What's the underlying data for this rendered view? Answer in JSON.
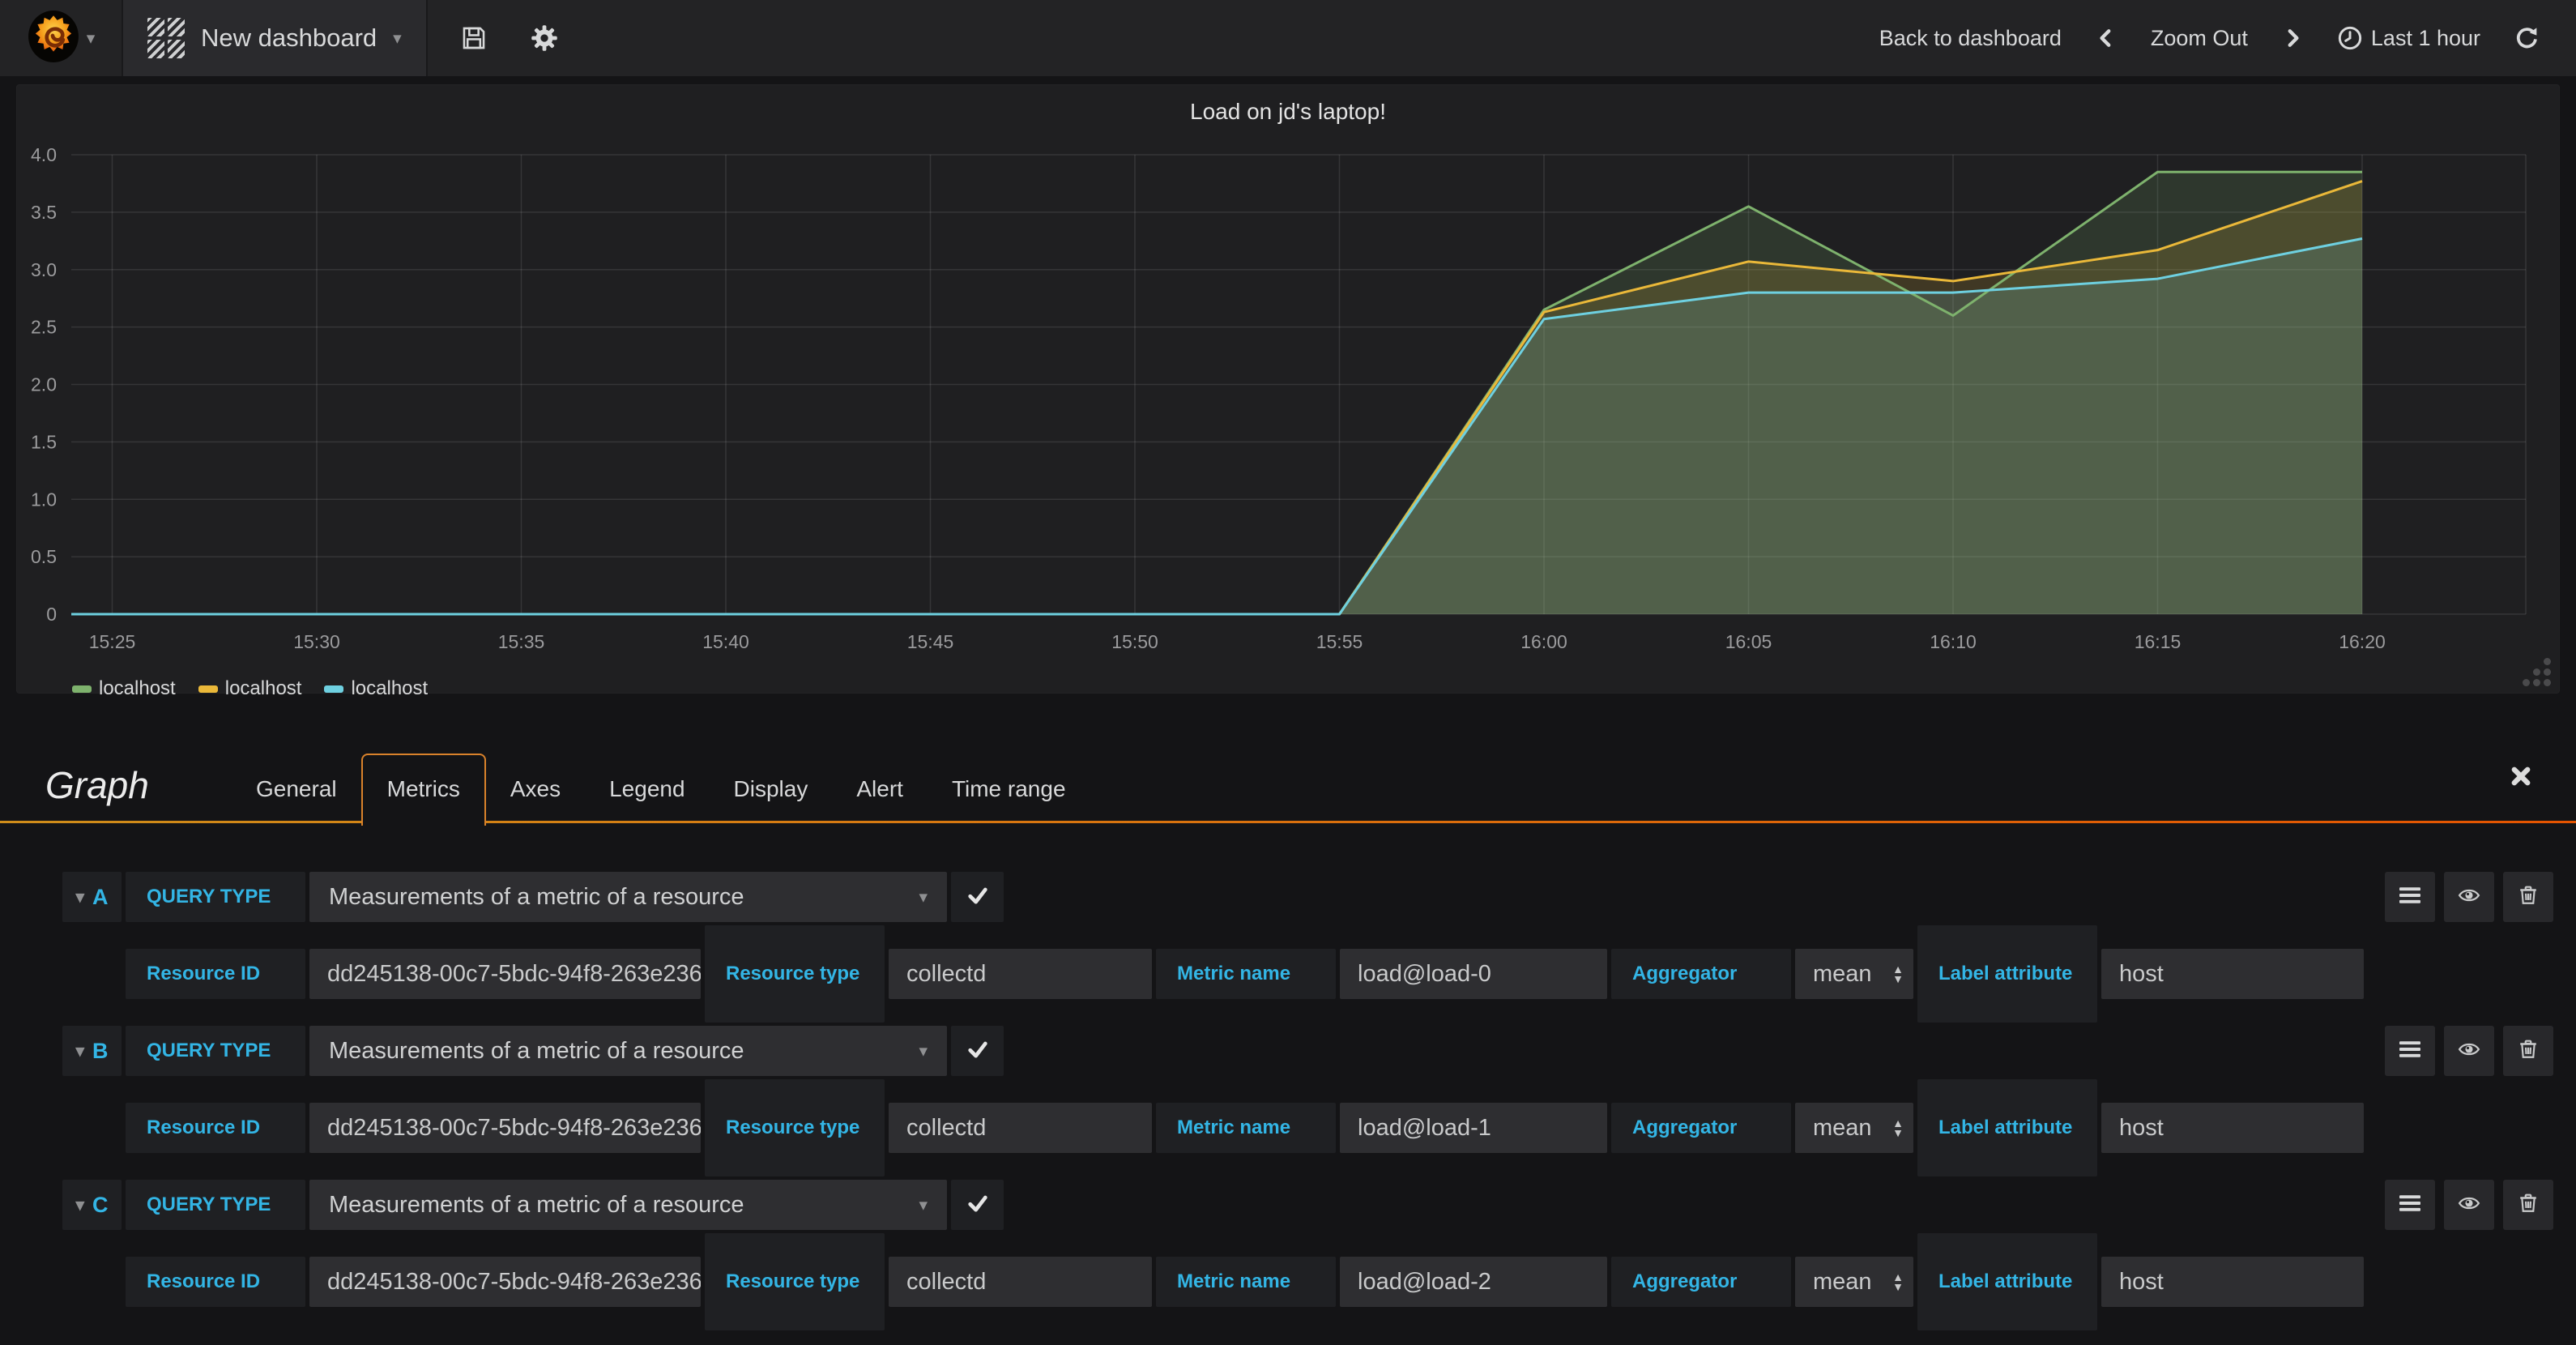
{
  "navbar": {
    "dashboard_title": "New dashboard",
    "back_to_dashboard": "Back to dashboard",
    "zoom_out": "Zoom Out",
    "time_range": "Last 1 hour"
  },
  "panel": {
    "title": "Load on jd's laptop!"
  },
  "chart_data": {
    "type": "area",
    "title": "Load on jd's laptop!",
    "x_ticks": [
      "15:25",
      "15:30",
      "15:35",
      "15:40",
      "15:45",
      "15:50",
      "15:55",
      "16:00",
      "16:05",
      "16:10",
      "16:15",
      "16:20"
    ],
    "y_ticks": [
      0,
      0.5,
      1.0,
      1.5,
      2.0,
      2.5,
      3.0,
      3.5,
      4.0
    ],
    "ylim": [
      0,
      4.0
    ],
    "grid": true,
    "legend_position": "bottom-left",
    "series": [
      {
        "name": "localhost",
        "color": "#7EB26D",
        "points": [
          [
            "15:25",
            0
          ],
          [
            "15:30",
            0
          ],
          [
            "15:35",
            0
          ],
          [
            "15:40",
            0
          ],
          [
            "15:45",
            0
          ],
          [
            "15:50",
            0
          ],
          [
            "15:55",
            0
          ],
          [
            "16:00",
            2.65
          ],
          [
            "16:05",
            3.55
          ],
          [
            "16:10",
            2.6
          ],
          [
            "16:15",
            3.85
          ],
          [
            "16:20",
            3.85
          ]
        ]
      },
      {
        "name": "localhost",
        "color": "#EAB839",
        "points": [
          [
            "15:25",
            0
          ],
          [
            "15:30",
            0
          ],
          [
            "15:35",
            0
          ],
          [
            "15:40",
            0
          ],
          [
            "15:45",
            0
          ],
          [
            "15:50",
            0
          ],
          [
            "15:55",
            0
          ],
          [
            "16:00",
            2.63
          ],
          [
            "16:05",
            3.07
          ],
          [
            "16:10",
            2.9
          ],
          [
            "16:15",
            3.17
          ],
          [
            "16:20",
            3.77
          ]
        ]
      },
      {
        "name": "localhost",
        "color": "#6ED0E0",
        "points": [
          [
            "15:25",
            0
          ],
          [
            "15:30",
            0
          ],
          [
            "15:35",
            0
          ],
          [
            "15:40",
            0
          ],
          [
            "15:45",
            0
          ],
          [
            "15:50",
            0
          ],
          [
            "15:55",
            0
          ],
          [
            "16:00",
            2.57
          ],
          [
            "16:05",
            2.8
          ],
          [
            "16:10",
            2.8
          ],
          [
            "16:15",
            2.92
          ],
          [
            "16:20",
            3.27
          ]
        ]
      }
    ]
  },
  "editor": {
    "panel_type": "Graph",
    "tabs": [
      "General",
      "Metrics",
      "Axes",
      "Legend",
      "Display",
      "Alert",
      "Time range"
    ],
    "active_tab": "Metrics",
    "queries": [
      {
        "letter": "A",
        "query_type_label": "QUERY TYPE",
        "query_type_value": "Measurements of a metric of a resource",
        "resource_id_label": "Resource ID",
        "resource_id": "dd245138-00c7-5bdc-94f8-263e236",
        "resource_type_label": "Resource type",
        "resource_type": "collectd",
        "metric_name_label": "Metric name",
        "metric_name": "load@load-0",
        "aggregator_label": "Aggregator",
        "aggregator": "mean",
        "label_attribute_label": "Label attribute",
        "label_attribute": "host"
      },
      {
        "letter": "B",
        "query_type_label": "QUERY TYPE",
        "query_type_value": "Measurements of a metric of a resource",
        "resource_id_label": "Resource ID",
        "resource_id": "dd245138-00c7-5bdc-94f8-263e236",
        "resource_type_label": "Resource type",
        "resource_type": "collectd",
        "metric_name_label": "Metric name",
        "metric_name": "load@load-1",
        "aggregator_label": "Aggregator",
        "aggregator": "mean",
        "label_attribute_label": "Label attribute",
        "label_attribute": "host"
      },
      {
        "letter": "C",
        "query_type_label": "QUERY TYPE",
        "query_type_value": "Measurements of a metric of a resource",
        "resource_id_label": "Resource ID",
        "resource_id": "dd245138-00c7-5bdc-94f8-263e236",
        "resource_type_label": "Resource type",
        "resource_type": "collectd",
        "metric_name_label": "Metric name",
        "metric_name": "load@load-2",
        "aggregator_label": "Aggregator",
        "aggregator": "mean",
        "label_attribute_label": "Label attribute",
        "label_attribute": "host"
      }
    ]
  },
  "icons": {
    "caret_down": "▾",
    "spinner_up": "▲",
    "spinner_down": "▼"
  },
  "colors": {
    "accent_blue": "#33b5e5",
    "tab_underline_start": "#cf8d1a",
    "tab_underline_end": "#e55400",
    "series_green": "#7EB26D",
    "series_yellow": "#EAB839",
    "series_blue": "#6ED0E0"
  }
}
